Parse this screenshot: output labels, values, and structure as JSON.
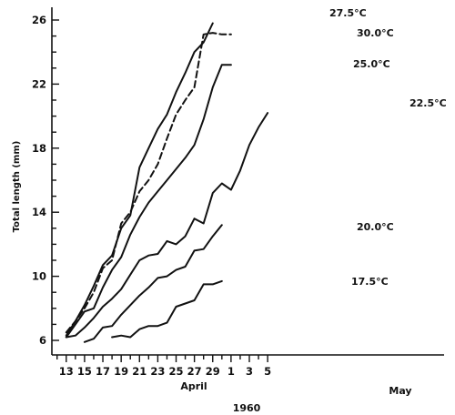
{
  "chart_data": {
    "type": "line",
    "ylabel": "Total length (mm)",
    "year_label": "1960",
    "month_labels": [
      "April",
      "May"
    ],
    "ylim": [
      5,
      27
    ],
    "y_ticks": [
      6,
      10,
      14,
      18,
      22,
      26
    ],
    "x_ticks": [
      "13",
      "15",
      "17",
      "19",
      "21",
      "23",
      "25",
      "27",
      "29",
      "1",
      "3",
      "5"
    ],
    "grid": false,
    "series": [
      {
        "name": "27.5°C",
        "dash": false,
        "x": [
          "Apr 13",
          "Apr 14",
          "Apr 15",
          "Apr 16",
          "Apr 17",
          "Apr 18",
          "Apr 19",
          "Apr 20",
          "Apr 21",
          "Apr 22",
          "Apr 23",
          "Apr 24",
          "Apr 25",
          "Apr 26",
          "Apr 27",
          "Apr 28",
          "Apr 29"
        ],
        "y": [
          6.3,
          7.2,
          8.2,
          9.4,
          10.7,
          11.3,
          13.0,
          13.8,
          16.8,
          18.0,
          19.2,
          20.1,
          21.5,
          22.7,
          24.0,
          24.6,
          25.8
        ]
      },
      {
        "name": "30.0°C",
        "dash": true,
        "x": [
          "Apr 13",
          "Apr 14",
          "Apr 15",
          "Apr 16",
          "Apr 17",
          "Apr 18",
          "Apr 19",
          "Apr 20",
          "Apr 21",
          "Apr 22",
          "Apr 23",
          "Apr 24",
          "Apr 25",
          "Apr 26",
          "Apr 27",
          "Apr 28",
          "Apr 29",
          "Apr 30",
          "May 1"
        ],
        "y": [
          6.5,
          7.2,
          8.0,
          9.0,
          10.5,
          11.0,
          13.3,
          14.0,
          15.3,
          16.0,
          17.0,
          18.6,
          20.1,
          21.0,
          21.8,
          25.1,
          25.2,
          25.1,
          25.1
        ]
      },
      {
        "name": "25.0°C",
        "dash": false,
        "x": [
          "Apr 13",
          "Apr 14",
          "Apr 15",
          "Apr 16",
          "Apr 17",
          "Apr 18",
          "Apr 19",
          "Apr 20",
          "Apr 21",
          "Apr 22",
          "Apr 23",
          "Apr 24",
          "Apr 25",
          "Apr 26",
          "Apr 27",
          "Apr 28",
          "Apr 29",
          "Apr 30",
          "May 1"
        ],
        "y": [
          6.2,
          7.0,
          7.8,
          8.0,
          9.3,
          10.4,
          11.2,
          12.6,
          13.7,
          14.6,
          15.3,
          16.0,
          16.7,
          17.4,
          18.2,
          19.8,
          21.8,
          23.2,
          23.2
        ]
      },
      {
        "name": "22.5°C",
        "dash": false,
        "x": [
          "Apr 13",
          "Apr 14",
          "Apr 15",
          "Apr 16",
          "Apr 17",
          "Apr 18",
          "Apr 19",
          "Apr 20",
          "Apr 21",
          "Apr 22",
          "Apr 23",
          "Apr 24",
          "Apr 25",
          "Apr 26",
          "Apr 27",
          "Apr 28",
          "Apr 29",
          "Apr 30",
          "May 1",
          "May 2",
          "May 3",
          "May 4",
          "May 5"
        ],
        "y": [
          6.2,
          6.3,
          6.8,
          7.4,
          8.1,
          8.6,
          9.2,
          10.1,
          11.0,
          11.3,
          11.4,
          12.2,
          12.0,
          12.5,
          13.6,
          13.3,
          15.2,
          15.8,
          15.4,
          16.6,
          18.2,
          19.3,
          20.2
        ]
      },
      {
        "name": "20.0°C",
        "dash": false,
        "x": [
          "Apr 15",
          "Apr 16",
          "Apr 17",
          "Apr 18",
          "Apr 19",
          "Apr 20",
          "Apr 21",
          "Apr 22",
          "Apr 23",
          "Apr 24",
          "Apr 25",
          "Apr 26",
          "Apr 27",
          "Apr 28",
          "Apr 29",
          "Apr 30"
        ],
        "y": [
          5.9,
          6.1,
          6.8,
          6.9,
          7.6,
          8.2,
          8.8,
          9.3,
          9.9,
          10.0,
          10.4,
          10.6,
          11.6,
          11.7,
          12.5,
          13.2
        ]
      },
      {
        "name": "17.5°C",
        "dash": false,
        "x": [
          "Apr 18",
          "Apr 19",
          "Apr 20",
          "Apr 21",
          "Apr 22",
          "Apr 23",
          "Apr 24",
          "Apr 25",
          "Apr 26",
          "Apr 27",
          "Apr 28",
          "Apr 29",
          "Apr 30"
        ],
        "y": [
          6.2,
          6.3,
          6.2,
          6.7,
          6.9,
          6.9,
          7.1,
          8.1,
          8.3,
          8.5,
          9.5,
          9.5,
          9.7
        ]
      }
    ]
  }
}
